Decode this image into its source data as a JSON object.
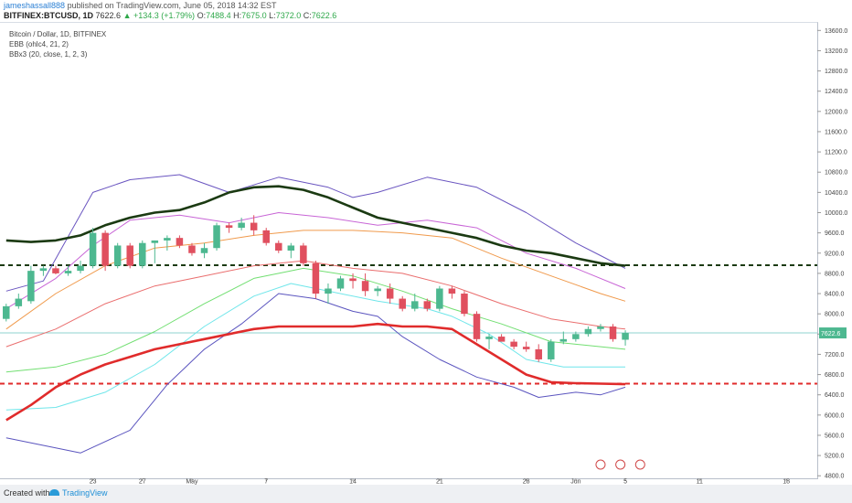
{
  "header": {
    "author": "jameshassall888",
    "published": "published on TradingView.com, June 05, 2018 14:32 EST",
    "symbol": "BITFINEX:BTCUSD, 1D",
    "last": "7622.6",
    "change": "▲ +134.3 (+1.79%)",
    "o_label": "O:",
    "o_value": "7488.4",
    "h_label": "H:",
    "h_value": "7675.0",
    "l_label": "L:",
    "l_value": "7372.0",
    "c_label": "C:",
    "c_value": "7622.6"
  },
  "legend": {
    "title": "Bitcoin / Dollar, 1D, BITFINEX",
    "ind1": "EBB (ohlc4, 21, 2)",
    "ind2": "BBx3 (20, close, 1, 2, 3)"
  },
  "footer": {
    "created": "Created with",
    "brand": "TradingView"
  },
  "price_label": "7622.6",
  "colors": {
    "up": "#4db890",
    "down": "#e0505f",
    "thick_green": "#1b3a12",
    "thick_red": "#e02b2b",
    "purple": "#6a55c0",
    "magenta": "#c865d6",
    "orange": "#f09a4c",
    "salmon": "#ea6e6e",
    "lightgreen": "#72df72",
    "cyan": "#6fe6ea",
    "blue": "#5b55bf"
  },
  "chart_data": {
    "type": "candlestick",
    "title": "Bitcoin / Dollar, 1D, BITFINEX",
    "y_ticks": [
      4800,
      5200,
      5600,
      6000,
      6400,
      6800,
      7200,
      7600,
      8000,
      8400,
      8800,
      9200,
      9600,
      10000,
      10400,
      10800,
      11200,
      11600,
      12000,
      12400,
      12800,
      13200,
      13600
    ],
    "y_tick_labels": [
      "4800.0",
      "5200.0",
      "5600.0",
      "6000.0",
      "6400.0",
      "6800.0",
      "7200.0",
      "7600.0",
      "8000.0",
      "8400.0",
      "8800.0",
      "9200.0",
      "9600.0",
      "10000.0",
      "10400.0",
      "10800.0",
      "11200.0",
      "11600.0",
      "12000.0",
      "12400.0",
      "12800.0",
      "13200.0",
      "13600.0"
    ],
    "ylim": [
      4750,
      13750
    ],
    "x_ticks": [
      {
        "label": "23",
        "day": 7
      },
      {
        "label": "27",
        "day": 11
      },
      {
        "label": "May",
        "day": 15
      },
      {
        "label": "7",
        "day": 21
      },
      {
        "label": "14",
        "day": 28
      },
      {
        "label": "21",
        "day": 35
      },
      {
        "label": "28",
        "day": 42
      },
      {
        "label": "Jun",
        "day": 46
      },
      {
        "label": "5",
        "day": 50
      },
      {
        "label": "11",
        "day": 56
      },
      {
        "label": "18",
        "day": 63
      }
    ],
    "xlim": [
      -0.5,
      65.5
    ],
    "candles": [
      {
        "o": 7900,
        "h": 8200,
        "l": 7850,
        "c": 8150
      },
      {
        "o": 8150,
        "h": 8400,
        "l": 8100,
        "c": 8300
      },
      {
        "o": 8250,
        "h": 8950,
        "l": 8200,
        "c": 8850
      },
      {
        "o": 8850,
        "h": 8950,
        "l": 8750,
        "c": 8900
      },
      {
        "o": 8900,
        "h": 8950,
        "l": 8780,
        "c": 8800
      },
      {
        "o": 8800,
        "h": 8950,
        "l": 8750,
        "c": 8850
      },
      {
        "o": 8850,
        "h": 9050,
        "l": 8800,
        "c": 8950
      },
      {
        "o": 8950,
        "h": 9700,
        "l": 8900,
        "c": 9600
      },
      {
        "o": 9600,
        "h": 9650,
        "l": 8850,
        "c": 8950
      },
      {
        "o": 8950,
        "h": 9400,
        "l": 8900,
        "c": 9350
      },
      {
        "o": 9350,
        "h": 9400,
        "l": 8900,
        "c": 8950
      },
      {
        "o": 8950,
        "h": 9450,
        "l": 8900,
        "c": 9400
      },
      {
        "o": 9400,
        "h": 9450,
        "l": 9000,
        "c": 9450
      },
      {
        "o": 9450,
        "h": 9550,
        "l": 9250,
        "c": 9500
      },
      {
        "o": 9500,
        "h": 9550,
        "l": 9300,
        "c": 9350
      },
      {
        "o": 9350,
        "h": 9400,
        "l": 9150,
        "c": 9200
      },
      {
        "o": 9200,
        "h": 9400,
        "l": 9100,
        "c": 9300
      },
      {
        "o": 9300,
        "h": 9800,
        "l": 9250,
        "c": 9750
      },
      {
        "o": 9750,
        "h": 9800,
        "l": 9600,
        "c": 9700
      },
      {
        "o": 9700,
        "h": 9900,
        "l": 9650,
        "c": 9800
      },
      {
        "o": 9800,
        "h": 9950,
        "l": 9550,
        "c": 9650
      },
      {
        "o": 9650,
        "h": 9700,
        "l": 9350,
        "c": 9400
      },
      {
        "o": 9400,
        "h": 9450,
        "l": 9200,
        "c": 9250
      },
      {
        "o": 9250,
        "h": 9400,
        "l": 9100,
        "c": 9350
      },
      {
        "o": 9350,
        "h": 9400,
        "l": 8950,
        "c": 9000
      },
      {
        "o": 9000,
        "h": 9050,
        "l": 8300,
        "c": 8400
      },
      {
        "o": 8400,
        "h": 8600,
        "l": 8200,
        "c": 8500
      },
      {
        "o": 8500,
        "h": 8750,
        "l": 8450,
        "c": 8700
      },
      {
        "o": 8700,
        "h": 8800,
        "l": 8500,
        "c": 8650
      },
      {
        "o": 8650,
        "h": 8800,
        "l": 8350,
        "c": 8450
      },
      {
        "o": 8450,
        "h": 8550,
        "l": 8350,
        "c": 8500
      },
      {
        "o": 8500,
        "h": 8600,
        "l": 8200,
        "c": 8300
      },
      {
        "o": 8300,
        "h": 8350,
        "l": 8050,
        "c": 8100
      },
      {
        "o": 8100,
        "h": 8400,
        "l": 8050,
        "c": 8250
      },
      {
        "o": 8250,
        "h": 8300,
        "l": 8050,
        "c": 8100
      },
      {
        "o": 8100,
        "h": 8550,
        "l": 8050,
        "c": 8500
      },
      {
        "o": 8500,
        "h": 8550,
        "l": 8300,
        "c": 8400
      },
      {
        "o": 8400,
        "h": 8450,
        "l": 7950,
        "c": 8000
      },
      {
        "o": 8000,
        "h": 8050,
        "l": 7450,
        "c": 7500
      },
      {
        "o": 7500,
        "h": 7600,
        "l": 7300,
        "c": 7550
      },
      {
        "o": 7550,
        "h": 7600,
        "l": 7450,
        "c": 7450
      },
      {
        "o": 7450,
        "h": 7500,
        "l": 7300,
        "c": 7350
      },
      {
        "o": 7350,
        "h": 7450,
        "l": 7250,
        "c": 7300
      },
      {
        "o": 7300,
        "h": 7400,
        "l": 7050,
        "c": 7100
      },
      {
        "o": 7100,
        "h": 7500,
        "l": 7050,
        "c": 7450
      },
      {
        "o": 7450,
        "h": 7650,
        "l": 7400,
        "c": 7500
      },
      {
        "o": 7500,
        "h": 7650,
        "l": 7450,
        "c": 7600
      },
      {
        "o": 7600,
        "h": 7750,
        "l": 7550,
        "c": 7700
      },
      {
        "o": 7700,
        "h": 7800,
        "l": 7650,
        "c": 7750
      },
      {
        "o": 7750,
        "h": 7800,
        "l": 7450,
        "c": 7500
      },
      {
        "o": 7488.4,
        "h": 7675,
        "l": 7372,
        "c": 7622.6
      }
    ],
    "series": [
      {
        "key": "purple",
        "values": [
          [
            0,
            8450
          ],
          [
            3,
            8650
          ],
          [
            7,
            10400
          ],
          [
            10,
            10650
          ],
          [
            14,
            10750
          ],
          [
            18,
            10400
          ],
          [
            22,
            10700
          ],
          [
            26,
            10500
          ],
          [
            28,
            10300
          ],
          [
            30,
            10400
          ],
          [
            34,
            10700
          ],
          [
            38,
            10500
          ],
          [
            42,
            10000
          ],
          [
            46,
            9400
          ],
          [
            48,
            9150
          ],
          [
            50,
            8900
          ]
        ]
      },
      {
        "key": "magenta",
        "values": [
          [
            0,
            8100
          ],
          [
            4,
            8700
          ],
          [
            7,
            9350
          ],
          [
            10,
            9850
          ],
          [
            14,
            9950
          ],
          [
            18,
            9800
          ],
          [
            22,
            10000
          ],
          [
            26,
            9900
          ],
          [
            30,
            9750
          ],
          [
            34,
            9850
          ],
          [
            38,
            9700
          ],
          [
            42,
            9200
          ],
          [
            46,
            8900
          ],
          [
            50,
            8500
          ]
        ]
      },
      {
        "key": "orange",
        "values": [
          [
            0,
            7700
          ],
          [
            4,
            8400
          ],
          [
            8,
            8950
          ],
          [
            12,
            9300
          ],
          [
            16,
            9400
          ],
          [
            20,
            9550
          ],
          [
            24,
            9650
          ],
          [
            28,
            9650
          ],
          [
            32,
            9600
          ],
          [
            36,
            9500
          ],
          [
            40,
            9100
          ],
          [
            44,
            8750
          ],
          [
            48,
            8400
          ],
          [
            50,
            8250
          ]
        ]
      },
      {
        "key": "salmon",
        "values": [
          [
            0,
            7350
          ],
          [
            4,
            7700
          ],
          [
            8,
            8200
          ],
          [
            12,
            8550
          ],
          [
            16,
            8750
          ],
          [
            20,
            8950
          ],
          [
            24,
            9050
          ],
          [
            28,
            8900
          ],
          [
            32,
            8800
          ],
          [
            36,
            8550
          ],
          [
            40,
            8200
          ],
          [
            44,
            7900
          ],
          [
            48,
            7750
          ],
          [
            50,
            7700
          ]
        ]
      },
      {
        "key": "lightgreen",
        "values": [
          [
            0,
            6850
          ],
          [
            4,
            6950
          ],
          [
            8,
            7200
          ],
          [
            12,
            7650
          ],
          [
            16,
            8200
          ],
          [
            20,
            8700
          ],
          [
            24,
            8900
          ],
          [
            28,
            8750
          ],
          [
            32,
            8450
          ],
          [
            36,
            8100
          ],
          [
            40,
            7800
          ],
          [
            44,
            7450
          ],
          [
            48,
            7350
          ],
          [
            50,
            7300
          ]
        ]
      },
      {
        "key": "cyan",
        "values": [
          [
            0,
            6100
          ],
          [
            4,
            6150
          ],
          [
            8,
            6450
          ],
          [
            12,
            7000
          ],
          [
            16,
            7750
          ],
          [
            20,
            8350
          ],
          [
            23,
            8600
          ],
          [
            26,
            8450
          ],
          [
            30,
            8250
          ],
          [
            34,
            8100
          ],
          [
            36,
            7950
          ],
          [
            39,
            7600
          ],
          [
            42,
            7100
          ],
          [
            45,
            6950
          ],
          [
            50,
            6950
          ]
        ]
      },
      {
        "key": "blue",
        "values": [
          [
            0,
            5550
          ],
          [
            3,
            5400
          ],
          [
            6,
            5250
          ],
          [
            10,
            5700
          ],
          [
            13,
            6600
          ],
          [
            16,
            7300
          ],
          [
            19,
            7800
          ],
          [
            22,
            8400
          ],
          [
            25,
            8300
          ],
          [
            28,
            8050
          ],
          [
            30,
            7950
          ],
          [
            32,
            7550
          ],
          [
            35,
            7100
          ],
          [
            38,
            6750
          ],
          [
            41,
            6550
          ],
          [
            43,
            6350
          ],
          [
            46,
            6450
          ],
          [
            48,
            6400
          ],
          [
            50,
            6550
          ]
        ]
      },
      {
        "key": "thick_green",
        "values": [
          [
            0,
            9450
          ],
          [
            2,
            9420
          ],
          [
            4,
            9450
          ],
          [
            6,
            9550
          ],
          [
            8,
            9750
          ],
          [
            10,
            9900
          ],
          [
            12,
            10000
          ],
          [
            14,
            10050
          ],
          [
            16,
            10200
          ],
          [
            18,
            10400
          ],
          [
            20,
            10500
          ],
          [
            22,
            10520
          ],
          [
            24,
            10450
          ],
          [
            26,
            10300
          ],
          [
            28,
            10100
          ],
          [
            30,
            9900
          ],
          [
            32,
            9800
          ],
          [
            34,
            9700
          ],
          [
            36,
            9600
          ],
          [
            38,
            9500
          ],
          [
            40,
            9350
          ],
          [
            42,
            9250
          ],
          [
            44,
            9200
          ],
          [
            46,
            9100
          ],
          [
            48,
            9000
          ],
          [
            50,
            8950
          ]
        ]
      },
      {
        "key": "thick_red",
        "values": [
          [
            0,
            5900
          ],
          [
            2,
            6200
          ],
          [
            4,
            6550
          ],
          [
            6,
            6800
          ],
          [
            8,
            7000
          ],
          [
            10,
            7150
          ],
          [
            12,
            7300
          ],
          [
            14,
            7400
          ],
          [
            16,
            7500
          ],
          [
            18,
            7600
          ],
          [
            20,
            7700
          ],
          [
            22,
            7750
          ],
          [
            24,
            7750
          ],
          [
            26,
            7750
          ],
          [
            28,
            7750
          ],
          [
            30,
            7800
          ],
          [
            32,
            7750
          ],
          [
            34,
            7750
          ],
          [
            36,
            7700
          ],
          [
            38,
            7400
          ],
          [
            40,
            7100
          ],
          [
            42,
            6800
          ],
          [
            44,
            6650
          ],
          [
            46,
            6630
          ],
          [
            48,
            6620
          ],
          [
            50,
            6610
          ]
        ]
      }
    ],
    "hlines": [
      {
        "value": 8960,
        "color_key": "thick_green"
      },
      {
        "value": 6620,
        "color_key": "thick_red"
      }
    ],
    "last_price": 7622.6
  }
}
